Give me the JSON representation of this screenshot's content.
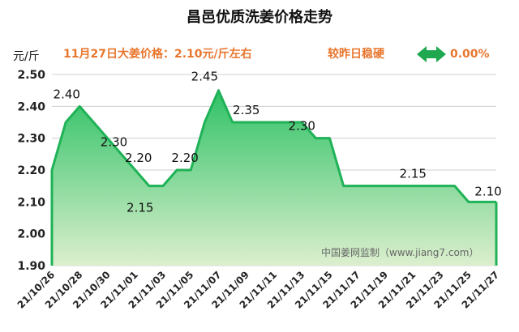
{
  "chart_data": {
    "type": "area",
    "title": "昌邑优质洗姜价格走势",
    "unit_label": "元/斤",
    "price_note": "11月27日大姜价格：2.10元/斤左右",
    "trend_label": "较昨日稳硬",
    "change_percent": "0.00%",
    "watermark": "中国姜网监制（www.jiang7.com）",
    "ylim": [
      1.9,
      2.5
    ],
    "yticks": [
      "1.90",
      "2.00",
      "2.10",
      "2.20",
      "2.30",
      "2.40",
      "2.50"
    ],
    "x_tick_labels": [
      "21/10/26",
      "21/10/28",
      "21/10/30",
      "21/11/01",
      "21/11/03",
      "21/11/05",
      "21/11/07",
      "21/11/09",
      "21/11/11",
      "21/11/13",
      "21/11/15",
      "21/11/17",
      "21/11/19",
      "21/11/21",
      "21/11/23",
      "21/11/25",
      "21/11/27"
    ],
    "x": [
      "21/10/26",
      "21/10/27",
      "21/10/28",
      "21/10/29",
      "21/10/30",
      "21/10/31",
      "21/11/01",
      "21/11/02",
      "21/11/03",
      "21/11/04",
      "21/11/05",
      "21/11/06",
      "21/11/07",
      "21/11/08",
      "21/11/09",
      "21/11/10",
      "21/11/11",
      "21/11/12",
      "21/11/13",
      "21/11/14",
      "21/11/15",
      "21/11/16",
      "21/11/17",
      "21/11/18",
      "21/11/19",
      "21/11/20",
      "21/11/21",
      "21/11/22",
      "21/11/23",
      "21/11/24",
      "21/11/25",
      "21/11/26",
      "21/11/27"
    ],
    "values": [
      2.2,
      2.35,
      2.4,
      2.35,
      2.3,
      2.25,
      2.2,
      2.15,
      2.15,
      2.2,
      2.2,
      2.35,
      2.45,
      2.35,
      2.35,
      2.35,
      2.35,
      2.35,
      2.35,
      2.3,
      2.3,
      2.15,
      2.15,
      2.15,
      2.15,
      2.15,
      2.15,
      2.15,
      2.15,
      2.15,
      2.1,
      2.1,
      2.1
    ],
    "data_labels": [
      {
        "x": "21/10/28",
        "text": "2.40"
      },
      {
        "x": "21/10/30",
        "text": "2.30"
      },
      {
        "x": "21/11/01",
        "text": "2.20"
      },
      {
        "x": "21/11/01",
        "text": "2.15"
      },
      {
        "x": "21/11/04",
        "text": "2.20"
      },
      {
        "x": "21/11/06",
        "text": "2.45"
      },
      {
        "x": "21/11/09",
        "text": "2.35"
      },
      {
        "x": "21/11/13",
        "text": "2.30"
      },
      {
        "x": "21/11/21",
        "text": "2.15"
      },
      {
        "x": "21/11/27",
        "text": "2.10"
      }
    ],
    "colors": {
      "line": "#1fb257",
      "fill_top": "#2fc266",
      "fill_bottom": "#dcefce",
      "arrow": "#1fa84f"
    },
    "grid": true
  }
}
